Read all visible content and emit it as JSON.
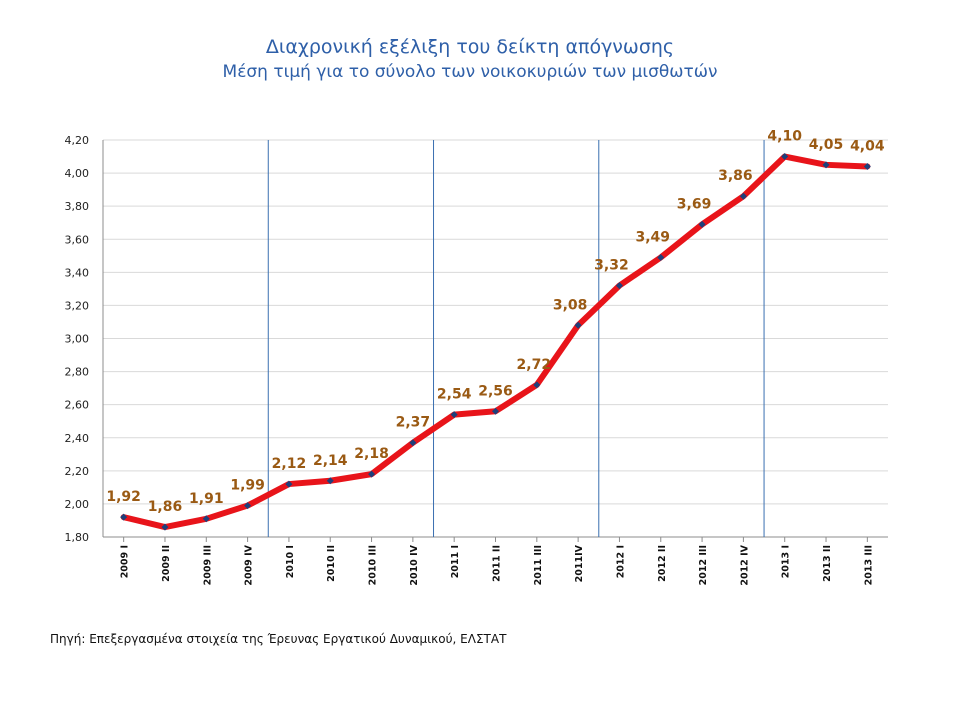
{
  "chart_data": {
    "type": "line",
    "title": "Διαχρονική εξέλιξη του δείκτη απόγνωσης",
    "subtitle": "Μέση τιμή για το σύνολο των νοικοκυριών των μισθωτών",
    "xlabel": "",
    "ylabel": "",
    "categories": [
      "2009 I",
      "2009 II",
      "2009 III",
      "2009 IV",
      "2010 I",
      "2010 II",
      "2010 III",
      "2010 IV",
      "2011 I",
      "2011 II",
      "2011 III",
      "2011IV",
      "2012 I",
      "2012 II",
      "2012 III",
      "2012 IV",
      "2013 I",
      "2013 II",
      "2013 III"
    ],
    "series": [
      {
        "values": [
          1.92,
          1.86,
          1.91,
          1.99,
          2.12,
          2.14,
          2.18,
          2.37,
          2.54,
          2.56,
          2.72,
          3.08,
          3.32,
          3.49,
          3.69,
          3.86,
          4.1,
          4.05,
          4.04
        ],
        "labels": [
          "1,92",
          "1,86",
          "1,91",
          "1,99",
          "2,12",
          "2,14",
          "2,18",
          "2,37",
          "2,54",
          "2,56",
          "2,72",
          "3,08",
          "3,32",
          "3,49",
          "3,69",
          "3,86",
          "4,10",
          "4,05",
          "4,04"
        ],
        "color": "#e8141a",
        "marker_color": "#1f3f7a"
      }
    ],
    "ylim": [
      1.8,
      4.2
    ],
    "yticks": [
      "1,80",
      "2,00",
      "2,20",
      "2,40",
      "2,60",
      "2,80",
      "3,00",
      "3,20",
      "3,40",
      "3,60",
      "3,80",
      "4,00",
      "4,20"
    ],
    "year_separators_after": [
      3,
      7,
      11,
      15
    ],
    "grid": true,
    "legend": "none"
  },
  "source": "Πηγή: Επεξεργασμένα στοιχεία της Έρευνας Εργατικού Δυναμικού, ΕΛΣΤΑΤ",
  "colors": {
    "title": "#2e5fa8",
    "label": "#9a5a14",
    "separator": "#3a6fb0",
    "grid": "#d9d9d9"
  }
}
